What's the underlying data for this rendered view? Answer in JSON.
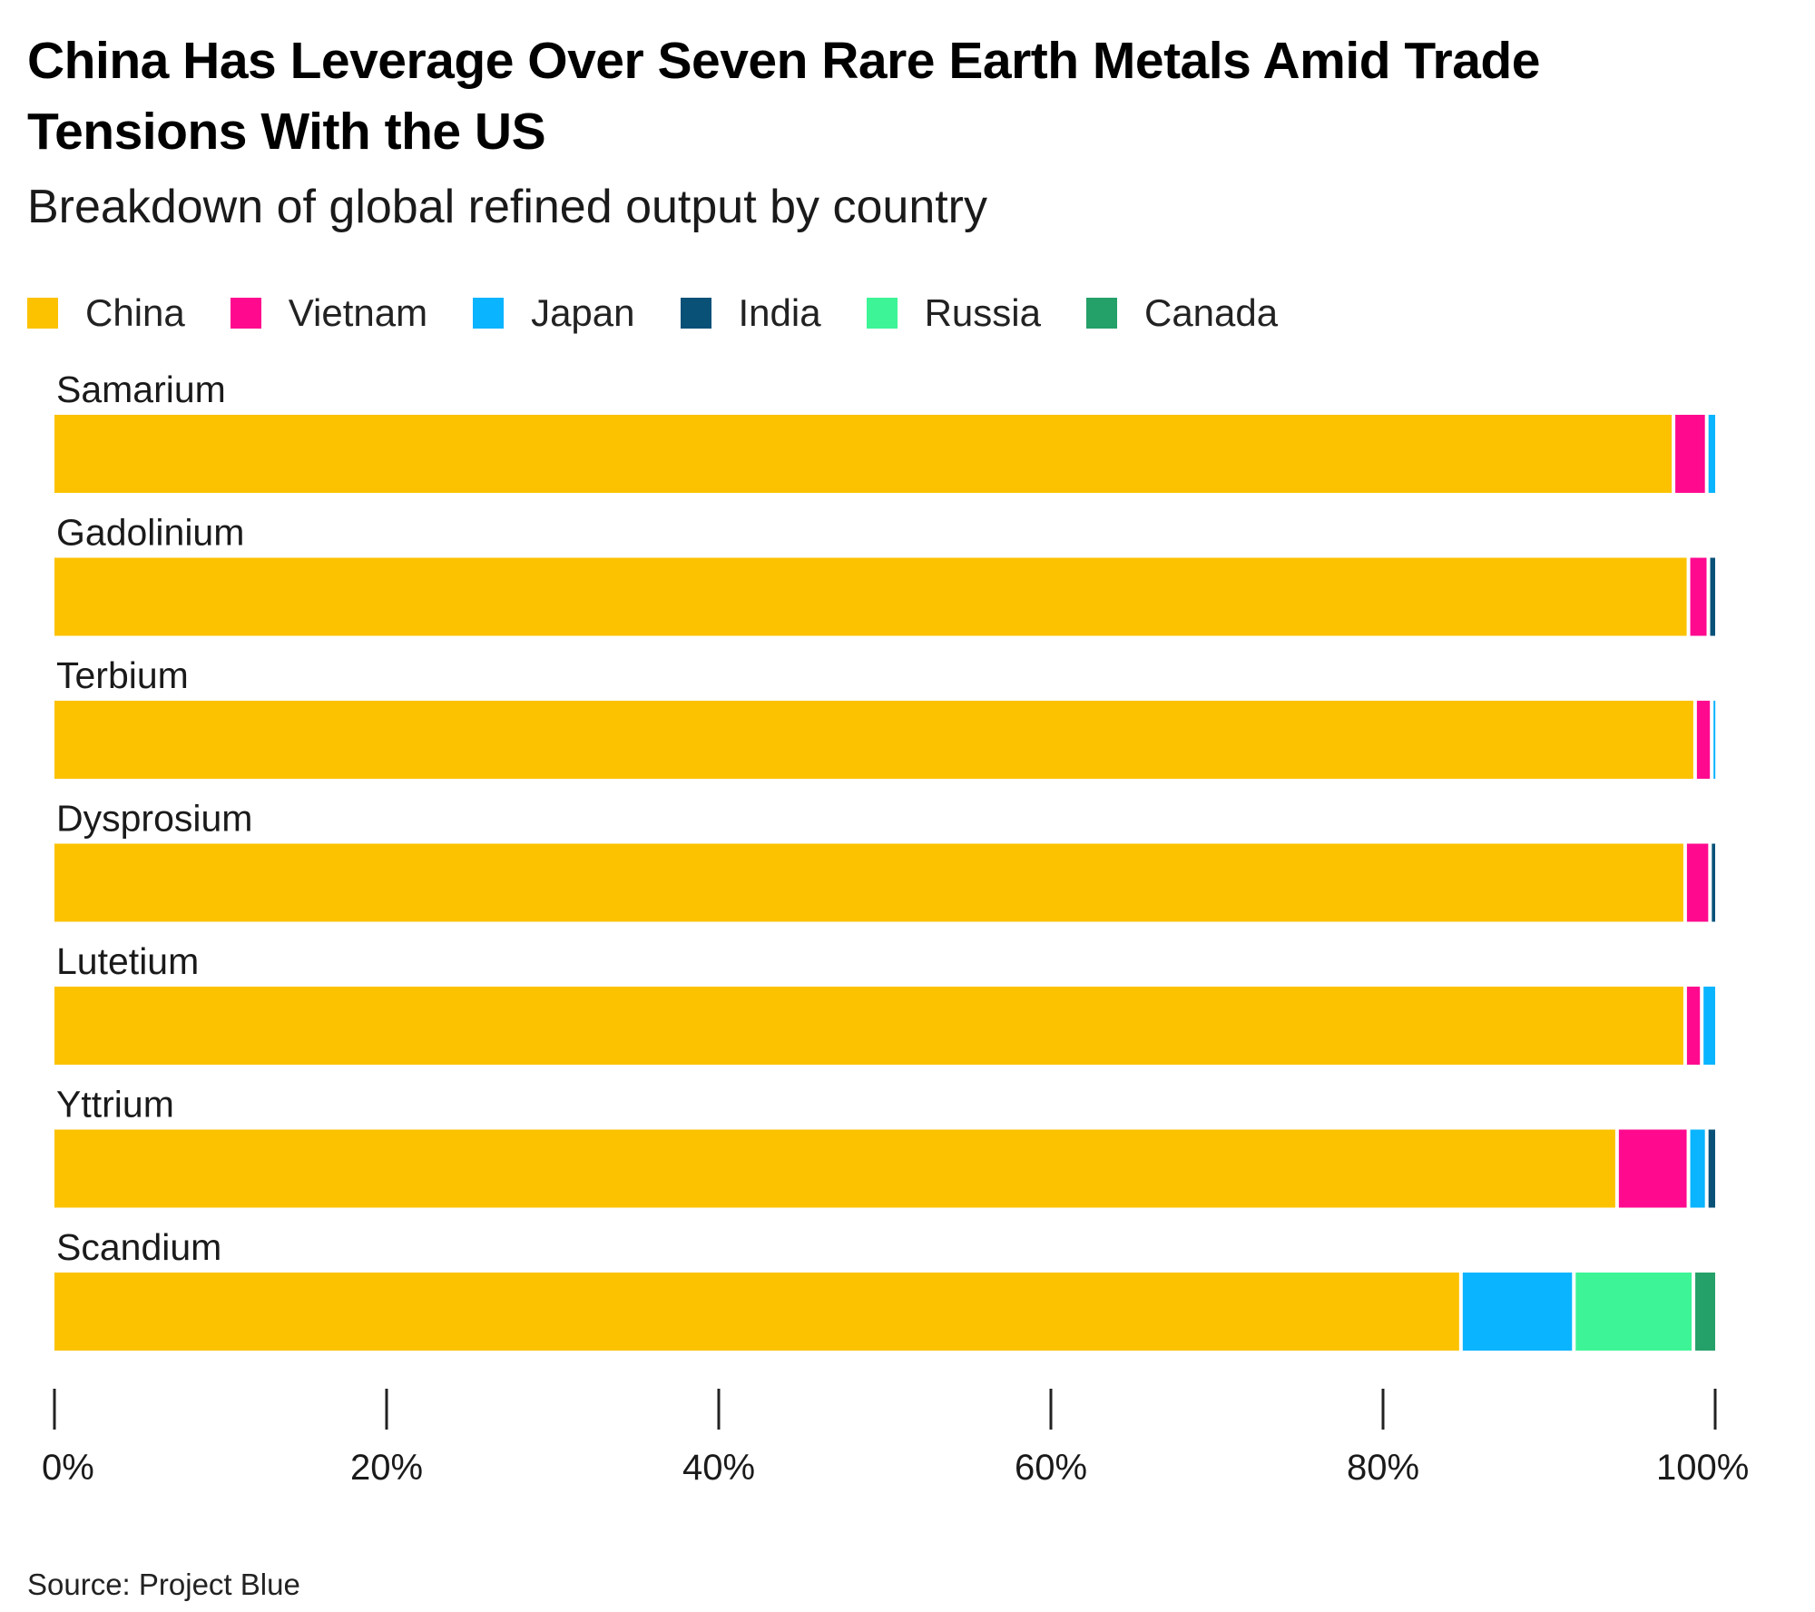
{
  "title": "China Has Leverage Over Seven Rare Earth Metals Amid Trade Tensions With the US",
  "subtitle": "Breakdown of global refined output by country",
  "source": "Source: Project Blue",
  "colors": {
    "China": "#FCC200",
    "Vietnam": "#FF0A8F",
    "Japan": "#0AB4FF",
    "India": "#0A5178",
    "Russia": "#3DF596",
    "Canada": "#24A069"
  },
  "chart_data": {
    "type": "bar",
    "orientation": "horizontal",
    "stacked": true,
    "title": "China Has Leverage Over Seven Rare Earth Metals Amid Trade Tensions With the US",
    "subtitle": "Breakdown of global refined output by country",
    "xlabel": "",
    "ylabel": "",
    "xlim": [
      0,
      100
    ],
    "legend_position": "top-left",
    "categories": [
      "Samarium",
      "Gadolinium",
      "Terbium",
      "Dysprosium",
      "Lutetium",
      "Yttrium",
      "Scandium"
    ],
    "series": [
      {
        "name": "China",
        "values": [
          97.6,
          98.5,
          98.9,
          98.3,
          98.3,
          94.2,
          84.8
        ]
      },
      {
        "name": "Vietnam",
        "values": [
          2.0,
          1.2,
          1.0,
          1.5,
          1.0,
          4.3,
          0.0
        ]
      },
      {
        "name": "Japan",
        "values": [
          0.4,
          0.0,
          0.1,
          0.0,
          0.7,
          1.1,
          6.8
        ]
      },
      {
        "name": "India",
        "values": [
          0.0,
          0.3,
          0.0,
          0.2,
          0.0,
          0.4,
          0.0
        ]
      },
      {
        "name": "Russia",
        "values": [
          0.0,
          0.0,
          0.0,
          0.0,
          0.0,
          0.0,
          7.2
        ]
      },
      {
        "name": "Canada",
        "values": [
          0.0,
          0.0,
          0.0,
          0.0,
          0.0,
          0.0,
          1.2
        ]
      }
    ],
    "ticks": [
      0,
      20,
      40,
      60,
      80,
      100
    ],
    "tick_labels": [
      "0%",
      "20%",
      "40%",
      "60%",
      "80%",
      "100%"
    ]
  }
}
